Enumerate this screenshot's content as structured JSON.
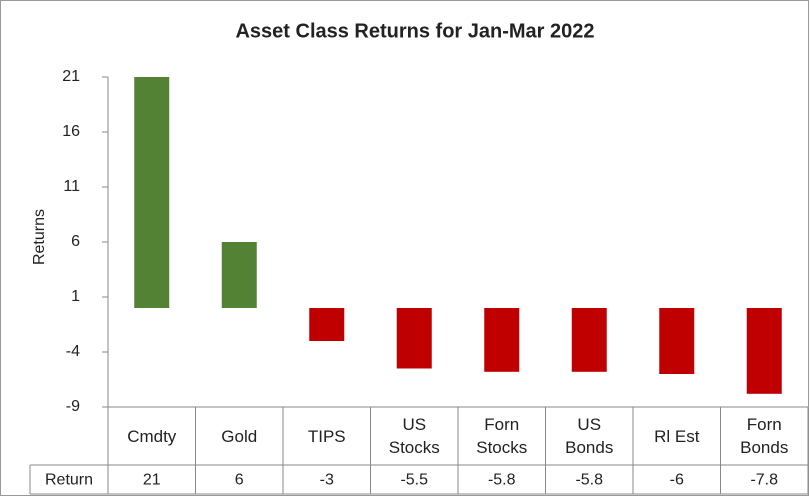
{
  "chart_data": {
    "type": "bar",
    "title": "Asset Class Returns for Jan-Mar 2022",
    "y_label": "Returns",
    "categories": [
      "Cmdty",
      "Gold",
      "TIPS",
      "US\nStocks",
      "Forn\nStocks",
      "US\nBonds",
      "Rl Est",
      "Forn\nBonds"
    ],
    "series": [
      {
        "name": "Return",
        "values": [
          21,
          6,
          -3,
          -5.5,
          -5.8,
          -5.8,
          -6,
          -7.8
        ],
        "colors": [
          "#548235",
          "#548235",
          "#c00000",
          "#c00000",
          "#c00000",
          "#c00000",
          "#c00000",
          "#c00000"
        ]
      }
    ],
    "ylim": [
      -9,
      21
    ],
    "yticks": [
      -9,
      -4,
      1,
      6,
      11,
      16,
      21
    ],
    "grid": false,
    "data_table": true
  }
}
